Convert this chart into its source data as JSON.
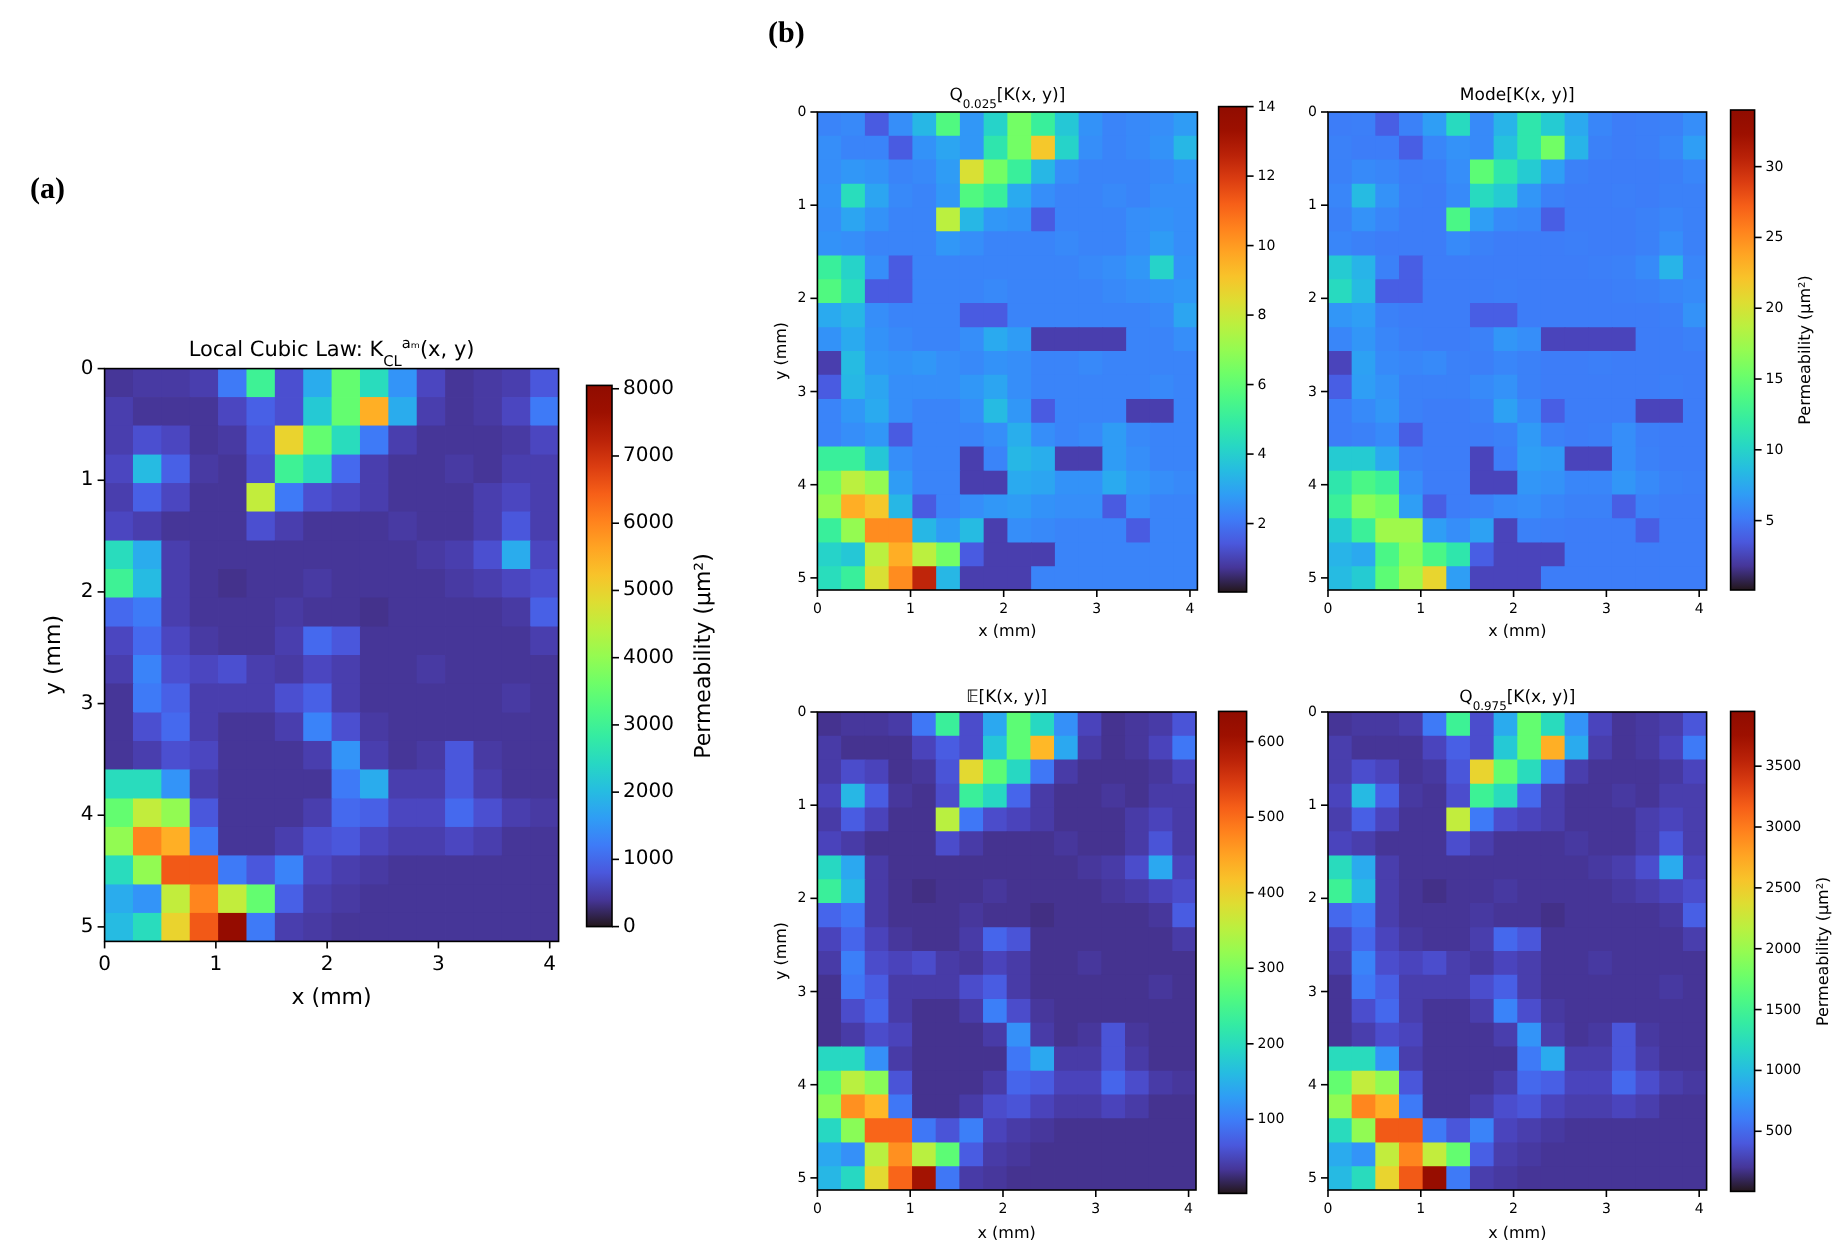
{
  "chart_data": [
    {
      "type": "heatmap",
      "title": "Local Cubic Law: K$_{CL}$$^{aₘ}$(x, y)",
      "xlabel": "x (mm)",
      "ylabel": "y (mm)",
      "clabel": "Permeability (μm²)",
      "annotations": [
        "(a)"
      ],
      "x": [
        0.13,
        0.38,
        0.64,
        0.89,
        1.15,
        1.4,
        1.66,
        1.91,
        2.17,
        2.42,
        2.68,
        2.93,
        3.19,
        3.44,
        3.7,
        3.95
      ],
      "y": [
        0.13,
        0.38,
        0.64,
        0.9,
        1.15,
        1.41,
        1.67,
        1.92,
        2.18,
        2.44,
        2.69,
        2.95,
        3.21,
        3.46,
        3.72,
        3.98,
        4.23,
        4.49,
        4.75,
        5
      ],
      "xlim": [
        0,
        4.08
      ],
      "ylim": [
        5.13,
        0
      ],
      "xticks": [
        0,
        1,
        2,
        3,
        4
      ],
      "yticks": [
        0,
        1,
        2,
        3,
        4,
        5
      ],
      "clim": [
        0,
        8050
      ],
      "cticks": [
        0,
        1000,
        2000,
        3000,
        4000,
        5000,
        6000,
        7000,
        8000
      ],
      "cells": [
        [
          400,
          450,
          450,
          500,
          1200,
          3000,
          700,
          1800,
          3500,
          2500,
          1500,
          600,
          400,
          450,
          500,
          800
        ],
        [
          500,
          400,
          400,
          400,
          600,
          900,
          700,
          2200,
          3500,
          5500,
          1800,
          500,
          400,
          450,
          600,
          1200
        ],
        [
          500,
          700,
          600,
          400,
          450,
          800,
          5000,
          3500,
          2500,
          1200,
          500,
          400,
          400,
          400,
          450,
          600
        ],
        [
          600,
          2000,
          900,
          450,
          400,
          700,
          3000,
          2500,
          1000,
          500,
          400,
          400,
          450,
          400,
          500,
          500
        ],
        [
          500,
          900,
          600,
          400,
          400,
          4500,
          1200,
          700,
          600,
          500,
          400,
          400,
          400,
          500,
          600,
          500
        ],
        [
          600,
          500,
          400,
          400,
          400,
          700,
          500,
          400,
          400,
          400,
          450,
          400,
          400,
          500,
          800,
          500
        ],
        [
          2500,
          1800,
          500,
          400,
          400,
          400,
          400,
          400,
          400,
          400,
          400,
          450,
          500,
          700,
          1800,
          600
        ],
        [
          3000,
          2000,
          500,
          400,
          350,
          400,
          400,
          450,
          400,
          400,
          400,
          400,
          450,
          500,
          600,
          700
        ],
        [
          1000,
          1200,
          500,
          400,
          400,
          400,
          450,
          400,
          400,
          350,
          400,
          400,
          400,
          400,
          450,
          900
        ],
        [
          600,
          1000,
          600,
          450,
          400,
          400,
          500,
          1000,
          800,
          400,
          400,
          400,
          400,
          400,
          400,
          500
        ],
        [
          500,
          1300,
          700,
          600,
          700,
          500,
          450,
          600,
          500,
          400,
          400,
          450,
          400,
          400,
          400,
          400
        ],
        [
          400,
          1200,
          900,
          500,
          500,
          500,
          700,
          900,
          500,
          400,
          400,
          400,
          400,
          400,
          450,
          400
        ],
        [
          400,
          700,
          1000,
          500,
          400,
          400,
          500,
          1300,
          700,
          450,
          400,
          400,
          400,
          400,
          400,
          400
        ],
        [
          400,
          500,
          700,
          600,
          400,
          400,
          400,
          500,
          1500,
          500,
          400,
          450,
          800,
          450,
          400,
          400
        ],
        [
          2500,
          2500,
          1500,
          500,
          400,
          400,
          400,
          400,
          1200,
          1800,
          500,
          500,
          800,
          500,
          400,
          400
        ],
        [
          3500,
          4500,
          4000,
          800,
          400,
          400,
          400,
          500,
          1000,
          900,
          600,
          600,
          1000,
          700,
          500,
          450
        ],
        [
          4000,
          6000,
          5500,
          1200,
          400,
          400,
          500,
          700,
          800,
          600,
          500,
          500,
          600,
          500,
          400,
          400
        ],
        [
          2500,
          4000,
          6500,
          6500,
          1200,
          800,
          1300,
          600,
          500,
          450,
          400,
          400,
          400,
          400,
          400,
          400
        ],
        [
          1800,
          1500,
          4500,
          6000,
          4500,
          3500,
          900,
          500,
          450,
          400,
          400,
          400,
          400,
          400,
          400,
          400
        ],
        [
          2000,
          2500,
          5000,
          6500,
          7800,
          1200,
          500,
          450,
          400,
          400,
          400,
          400,
          400,
          400,
          400,
          400
        ]
      ]
    },
    {
      "type": "heatmap",
      "title": "Q$_{0.025}$[K(x, y)]",
      "xlabel": "x (mm)",
      "ylabel": "y (mm)",
      "annotations": [
        "(b)"
      ],
      "x": [
        0.13,
        0.38,
        0.64,
        0.89,
        1.15,
        1.4,
        1.66,
        1.91,
        2.17,
        2.42,
        2.68,
        2.93,
        3.19,
        3.44,
        3.7,
        3.95
      ],
      "y": [
        0.13,
        0.38,
        0.64,
        0.9,
        1.15,
        1.41,
        1.67,
        1.92,
        2.18,
        2.44,
        2.69,
        2.95,
        3.21,
        3.46,
        3.72,
        3.98,
        4.23,
        4.49,
        4.75,
        5
      ],
      "xlim": [
        0,
        4.08
      ],
      "ylim": [
        5.13,
        0
      ],
      "xticks": [
        0,
        1,
        2,
        3,
        4
      ],
      "yticks": [
        0,
        1,
        2,
        3,
        4,
        5
      ],
      "clim": [
        0.03,
        14
      ],
      "cticks": [
        2,
        4,
        6,
        8,
        10,
        12,
        14
      ],
      "cells": [
        [
          2.3,
          2.4,
          1.5,
          2.5,
          3.4,
          5.7,
          2.7,
          4.1,
          6.4,
          5.1,
          3.8,
          2.6,
          2.3,
          2.4,
          2.5,
          2.8
        ],
        [
          2.5,
          2.3,
          2.3,
          1.5,
          2.6,
          3.0,
          2.7,
          4.7,
          6.4,
          9.0,
          4.1,
          2.5,
          2.3,
          2.4,
          2.6,
          3.4
        ],
        [
          2.5,
          2.7,
          2.6,
          2.3,
          2.4,
          2.8,
          8.3,
          6.4,
          5.1,
          3.4,
          2.5,
          2.3,
          2.3,
          2.3,
          2.4,
          2.6
        ],
        [
          2.6,
          4.4,
          3.0,
          2.4,
          2.3,
          2.7,
          5.7,
          5.1,
          3.1,
          2.5,
          2.3,
          2.3,
          2.4,
          2.3,
          2.5,
          2.5
        ],
        [
          2.5,
          3.0,
          2.6,
          2.3,
          2.3,
          7.7,
          3.4,
          2.7,
          2.6,
          1.5,
          2.3,
          2.3,
          2.3,
          2.5,
          2.6,
          2.5
        ],
        [
          2.6,
          2.5,
          2.3,
          2.3,
          2.3,
          2.7,
          2.5,
          2.3,
          2.3,
          2.3,
          2.4,
          2.3,
          2.3,
          2.5,
          2.8,
          2.5
        ],
        [
          5.1,
          4.1,
          2.5,
          1.5,
          2.3,
          2.3,
          2.3,
          2.3,
          2.3,
          2.3,
          2.3,
          2.4,
          2.5,
          2.7,
          4.1,
          2.6
        ],
        [
          5.7,
          4.4,
          1.5,
          1.5,
          2.3,
          2.3,
          2.3,
          2.4,
          2.3,
          2.3,
          2.3,
          2.3,
          2.4,
          2.5,
          2.6,
          2.7
        ],
        [
          3.1,
          3.4,
          2.5,
          2.3,
          2.3,
          2.3,
          1.5,
          1.5,
          2.3,
          2.3,
          2.3,
          2.3,
          2.3,
          2.3,
          2.4,
          3.0
        ],
        [
          2.6,
          3.1,
          2.6,
          2.4,
          2.3,
          2.3,
          2.5,
          3.1,
          2.8,
          0.9,
          0.9,
          0.9,
          0.9,
          2.3,
          2.3,
          2.5
        ],
        [
          0.9,
          3.5,
          2.7,
          2.6,
          2.7,
          2.5,
          2.4,
          2.6,
          2.5,
          2.3,
          2.3,
          2.4,
          2.3,
          2.3,
          2.3,
          2.3
        ],
        [
          1.5,
          3.4,
          3.0,
          2.5,
          2.5,
          2.5,
          2.7,
          3.0,
          2.5,
          2.3,
          2.3,
          2.3,
          2.3,
          2.3,
          2.4,
          2.3
        ],
        [
          2.3,
          2.7,
          3.1,
          2.5,
          2.3,
          2.3,
          2.5,
          3.5,
          2.7,
          1.5,
          2.3,
          2.3,
          2.3,
          0.9,
          0.9,
          2.3
        ],
        [
          2.3,
          2.5,
          2.7,
          1.5,
          2.3,
          2.3,
          2.3,
          2.5,
          3.2,
          2.5,
          2.3,
          2.4,
          2.8,
          2.4,
          2.3,
          2.3
        ],
        [
          5.1,
          5.1,
          3.8,
          2.5,
          2.3,
          2.3,
          0.9,
          2.3,
          3.4,
          3.2,
          0.9,
          0.9,
          2.8,
          2.5,
          2.3,
          2.3
        ],
        [
          6.4,
          7.7,
          7.0,
          2.8,
          2.3,
          2.3,
          0.9,
          0.9,
          3.1,
          3.0,
          2.6,
          2.6,
          3.1,
          2.7,
          2.5,
          2.4
        ],
        [
          7.0,
          9.6,
          9.0,
          3.4,
          1.5,
          2.3,
          2.5,
          2.7,
          2.8,
          2.6,
          2.5,
          2.5,
          1.5,
          2.5,
          2.3,
          2.3
        ],
        [
          5.1,
          7.0,
          10.3,
          10.3,
          3.4,
          2.8,
          3.5,
          0.9,
          2.5,
          2.4,
          2.3,
          2.3,
          2.3,
          1.5,
          2.3,
          2.3
        ],
        [
          4.1,
          3.8,
          7.7,
          9.6,
          7.7,
          6.4,
          1.5,
          0.9,
          0.9,
          0.9,
          2.3,
          2.3,
          2.3,
          2.3,
          2.3,
          2.3
        ],
        [
          4.4,
          5.1,
          8.3,
          10.3,
          12.5,
          3.4,
          0.9,
          0.9,
          0.9,
          2.3,
          2.3,
          2.3,
          2.3,
          2.3,
          2.3,
          2.3
        ]
      ]
    },
    {
      "type": "heatmap",
      "title": "Mode[K(x, y)]",
      "xlabel": "x (mm)",
      "clabel": "Permeability (μm²)",
      "x": [
        0.13,
        0.38,
        0.64,
        0.89,
        1.15,
        1.4,
        1.66,
        1.91,
        2.17,
        2.42,
        2.68,
        2.93,
        3.19,
        3.44,
        3.7,
        3.95
      ],
      "y": [
        0.13,
        0.38,
        0.64,
        0.9,
        1.15,
        1.41,
        1.67,
        1.92,
        2.18,
        2.44,
        2.69,
        2.95,
        3.21,
        3.46,
        3.72,
        3.98,
        4.23,
        4.49,
        4.75,
        5
      ],
      "xlim": [
        0,
        4.08
      ],
      "ylim": [
        5.13,
        0
      ],
      "xticks": [
        0,
        1,
        2,
        3,
        4
      ],
      "yticks": [
        0,
        1,
        2,
        3,
        4,
        5
      ],
      "clim": [
        0.1,
        34
      ],
      "cticks": [
        5,
        10,
        15,
        20,
        25,
        30
      ],
      "cells": [
        [
          5.3,
          5.4,
          3.8,
          5.5,
          6.9,
          10.5,
          5.9,
          8.1,
          11.5,
          9.5,
          7.5,
          5.7,
          5.3,
          5.4,
          5.5,
          6.1
        ],
        [
          5.5,
          5.3,
          5.3,
          3.8,
          5.7,
          6.3,
          5.9,
          8.9,
          11.5,
          15.5,
          8.1,
          5.5,
          5.3,
          5.4,
          5.7,
          6.9
        ],
        [
          5.5,
          5.9,
          5.7,
          5.3,
          5.4,
          6.1,
          14.5,
          11.5,
          9.5,
          6.9,
          5.5,
          5.3,
          5.3,
          5.3,
          5.4,
          5.7
        ],
        [
          5.7,
          8.5,
          6.3,
          5.4,
          5.3,
          5.9,
          10.5,
          9.5,
          6.5,
          5.5,
          5.3,
          5.3,
          5.4,
          5.3,
          5.5,
          5.5
        ],
        [
          5.5,
          6.3,
          5.7,
          5.3,
          5.3,
          13.5,
          6.9,
          5.9,
          5.7,
          3.8,
          5.3,
          5.3,
          5.3,
          5.5,
          5.7,
          5.5
        ],
        [
          5.7,
          5.5,
          5.3,
          5.3,
          5.3,
          5.9,
          5.5,
          5.3,
          5.3,
          5.3,
          5.4,
          5.3,
          5.3,
          5.5,
          6.1,
          5.5
        ],
        [
          9.5,
          8.1,
          5.5,
          3.8,
          5.3,
          5.3,
          5.3,
          5.3,
          5.3,
          5.3,
          5.3,
          5.4,
          5.5,
          5.9,
          8.1,
          5.7
        ],
        [
          10.5,
          8.5,
          3.8,
          3.8,
          5.3,
          5.3,
          5.3,
          5.4,
          5.3,
          5.3,
          5.3,
          5.3,
          5.4,
          5.5,
          5.7,
          5.9
        ],
        [
          6.5,
          6.9,
          5.5,
          5.3,
          5.3,
          5.3,
          3.8,
          3.8,
          5.3,
          5.3,
          5.3,
          5.3,
          5.3,
          5.3,
          5.4,
          6.3
        ],
        [
          5.7,
          6.5,
          5.7,
          5.4,
          5.3,
          5.3,
          5.5,
          6.5,
          6.1,
          2.5,
          2.5,
          2.5,
          2.5,
          5.3,
          5.3,
          5.5
        ],
        [
          2.5,
          7.1,
          5.9,
          5.7,
          5.9,
          5.5,
          5.4,
          5.7,
          5.5,
          5.3,
          5.3,
          5.4,
          5.3,
          5.3,
          5.3,
          5.3
        ],
        [
          3.8,
          6.9,
          6.3,
          5.5,
          5.5,
          5.5,
          5.9,
          6.3,
          5.5,
          5.3,
          5.3,
          5.3,
          5.3,
          5.3,
          5.4,
          5.3
        ],
        [
          5.3,
          5.9,
          6.5,
          5.5,
          5.3,
          5.3,
          5.5,
          7.1,
          5.9,
          3.8,
          5.3,
          5.3,
          5.3,
          2.5,
          2.5,
          5.3
        ],
        [
          5.3,
          5.5,
          5.9,
          3.8,
          5.3,
          5.3,
          5.3,
          5.5,
          6.7,
          5.5,
          5.3,
          5.4,
          6.1,
          5.4,
          5.3,
          5.3
        ],
        [
          9.5,
          9.5,
          7.5,
          5.5,
          5.3,
          5.3,
          2.5,
          5.3,
          6.9,
          6.7,
          2.5,
          2.5,
          6.1,
          5.5,
          5.3,
          5.3
        ],
        [
          11.5,
          13.5,
          12.5,
          6.1,
          5.3,
          5.3,
          2.5,
          2.5,
          6.5,
          6.3,
          5.7,
          5.7,
          6.5,
          5.9,
          5.5,
          5.4
        ],
        [
          12.5,
          16.5,
          15.5,
          6.9,
          3.8,
          5.3,
          5.5,
          5.9,
          6.1,
          5.7,
          5.5,
          5.5,
          3.8,
          5.5,
          5.3,
          5.3
        ],
        [
          9.5,
          12.5,
          17.5,
          17.5,
          6.9,
          6.1,
          7.1,
          2.5,
          5.5,
          5.4,
          5.3,
          5.3,
          5.3,
          3.8,
          5.3,
          5.3
        ],
        [
          8.1,
          7.5,
          13.5,
          16.5,
          13.5,
          11.5,
          3.8,
          2.5,
          2.5,
          2.5,
          5.3,
          5.3,
          5.3,
          5.3,
          5.3,
          5.3
        ],
        [
          8.5,
          9.5,
          14.5,
          17.5,
          21,
          6.9,
          2.5,
          2.5,
          2.5,
          5.3,
          5.3,
          5.3,
          5.3,
          5.3,
          5.3,
          5.3
        ]
      ]
    },
    {
      "type": "heatmap",
      "title": "𝔼[K(x, y)]",
      "xlabel": "x (mm)",
      "ylabel": "y (mm)",
      "x": [
        0.13,
        0.38,
        0.64,
        0.89,
        1.15,
        1.4,
        1.66,
        1.91,
        2.17,
        2.42,
        2.68,
        2.93,
        3.19,
        3.44,
        3.7,
        3.95
      ],
      "y": [
        0.13,
        0.38,
        0.64,
        0.9,
        1.15,
        1.41,
        1.67,
        1.92,
        2.18,
        2.44,
        2.69,
        2.95,
        3.21,
        3.46,
        3.72,
        3.98,
        4.23,
        4.49,
        4.75,
        5
      ],
      "xlim": [
        0,
        4.08
      ],
      "ylim": [
        5.13,
        0
      ],
      "xticks": [
        0,
        1,
        2,
        3,
        4
      ],
      "yticks": [
        0,
        1,
        2,
        3,
        4,
        5
      ],
      "clim": [
        2,
        640
      ],
      "cticks": [
        100,
        200,
        300,
        400,
        500,
        600
      ],
      "cells": [
        [
          31,
          35,
          35,
          39,
          94,
          234,
          55,
          140,
          273,
          195,
          117,
          47,
          31,
          35,
          39,
          62
        ],
        [
          39,
          31,
          31,
          31,
          47,
          70,
          55,
          172,
          273,
          429,
          140,
          39,
          31,
          35,
          47,
          94
        ],
        [
          39,
          55,
          47,
          31,
          35,
          62,
          390,
          273,
          195,
          94,
          39,
          31,
          31,
          31,
          35,
          47
        ],
        [
          47,
          156,
          70,
          35,
          31,
          55,
          234,
          195,
          78,
          39,
          31,
          31,
          35,
          31,
          39,
          39
        ],
        [
          39,
          70,
          47,
          31,
          31,
          351,
          94,
          55,
          47,
          39,
          31,
          31,
          31,
          39,
          47,
          39
        ],
        [
          47,
          39,
          31,
          31,
          31,
          55,
          39,
          31,
          31,
          31,
          35,
          31,
          31,
          39,
          62,
          39
        ],
        [
          195,
          140,
          39,
          31,
          31,
          31,
          31,
          31,
          31,
          31,
          31,
          35,
          39,
          55,
          140,
          47
        ],
        [
          234,
          156,
          39,
          31,
          27,
          31,
          31,
          35,
          31,
          31,
          31,
          31,
          35,
          39,
          47,
          55
        ],
        [
          78,
          94,
          39,
          31,
          31,
          31,
          35,
          31,
          31,
          27,
          31,
          31,
          31,
          31,
          35,
          70
        ],
        [
          47,
          78,
          47,
          35,
          31,
          31,
          39,
          78,
          62,
          31,
          31,
          31,
          31,
          31,
          31,
          39
        ],
        [
          39,
          101,
          55,
          47,
          55,
          39,
          35,
          47,
          39,
          31,
          31,
          35,
          31,
          31,
          31,
          31
        ],
        [
          31,
          94,
          70,
          39,
          39,
          39,
          55,
          70,
          39,
          31,
          31,
          31,
          31,
          31,
          35,
          31
        ],
        [
          31,
          55,
          78,
          39,
          31,
          31,
          39,
          101,
          55,
          35,
          31,
          31,
          31,
          31,
          31,
          31
        ],
        [
          31,
          39,
          55,
          47,
          31,
          31,
          31,
          39,
          117,
          39,
          31,
          35,
          62,
          35,
          31,
          31
        ],
        [
          195,
          195,
          117,
          39,
          31,
          31,
          31,
          31,
          94,
          140,
          39,
          39,
          62,
          39,
          31,
          31
        ],
        [
          273,
          351,
          312,
          62,
          31,
          31,
          31,
          39,
          78,
          70,
          47,
          47,
          78,
          55,
          39,
          35
        ],
        [
          312,
          468,
          429,
          94,
          31,
          31,
          39,
          55,
          62,
          47,
          39,
          39,
          47,
          39,
          31,
          31
        ],
        [
          195,
          312,
          507,
          507,
          94,
          62,
          101,
          47,
          39,
          35,
          31,
          31,
          31,
          31,
          31,
          31
        ],
        [
          140,
          117,
          351,
          468,
          351,
          273,
          70,
          39,
          35,
          31,
          31,
          31,
          31,
          31,
          31,
          31
        ],
        [
          156,
          195,
          390,
          507,
          600,
          94,
          39,
          35,
          31,
          31,
          31,
          31,
          31,
          31,
          31,
          31
        ]
      ]
    },
    {
      "type": "heatmap",
      "title": "Q$_{0.975}$[K(x, y)]",
      "xlabel": "x (mm)",
      "clabel": "Permeability (μm²)",
      "x": [
        0.13,
        0.38,
        0.64,
        0.89,
        1.15,
        1.4,
        1.66,
        1.91,
        2.17,
        2.42,
        2.68,
        2.93,
        3.19,
        3.44,
        3.7,
        3.95
      ],
      "y": [
        0.13,
        0.38,
        0.64,
        0.9,
        1.15,
        1.41,
        1.67,
        1.92,
        2.18,
        2.44,
        2.69,
        2.95,
        3.21,
        3.46,
        3.72,
        3.98,
        4.23,
        4.49,
        4.75,
        5
      ],
      "xlim": [
        0,
        4.08
      ],
      "ylim": [
        5.13,
        0
      ],
      "xticks": [
        0,
        1,
        2,
        3,
        4
      ],
      "yticks": [
        0,
        1,
        2,
        3,
        4,
        5
      ],
      "clim": [
        6,
        3950
      ],
      "cticks": [
        500,
        1000,
        1500,
        2000,
        2500,
        3000,
        3500
      ],
      "cells": [
        [
          200,
          220,
          220,
          250,
          590,
          1470,
          340,
          880,
          1720,
          1230,
          740,
          290,
          200,
          220,
          250,
          390
        ],
        [
          250,
          200,
          200,
          200,
          290,
          440,
          340,
          1080,
          1720,
          2700,
          880,
          250,
          200,
          220,
          290,
          590
        ],
        [
          250,
          340,
          290,
          200,
          220,
          390,
          2450,
          1720,
          1230,
          590,
          250,
          200,
          200,
          200,
          220,
          290
        ],
        [
          290,
          980,
          440,
          220,
          200,
          340,
          1470,
          1230,
          490,
          250,
          200,
          200,
          220,
          200,
          250,
          250
        ],
        [
          250,
          440,
          290,
          200,
          200,
          2210,
          590,
          340,
          290,
          250,
          200,
          200,
          200,
          250,
          290,
          250
        ],
        [
          290,
          250,
          200,
          200,
          200,
          340,
          250,
          200,
          200,
          200,
          220,
          200,
          200,
          250,
          390,
          250
        ],
        [
          1230,
          880,
          250,
          200,
          200,
          200,
          200,
          200,
          200,
          200,
          200,
          220,
          250,
          340,
          880,
          290
        ],
        [
          1470,
          980,
          250,
          200,
          170,
          200,
          200,
          220,
          200,
          200,
          200,
          200,
          220,
          250,
          290,
          340
        ],
        [
          490,
          590,
          250,
          200,
          200,
          200,
          220,
          200,
          200,
          170,
          200,
          200,
          200,
          200,
          220,
          440
        ],
        [
          290,
          490,
          290,
          220,
          200,
          200,
          250,
          490,
          390,
          200,
          200,
          200,
          200,
          200,
          200,
          250
        ],
        [
          250,
          640,
          340,
          290,
          340,
          250,
          220,
          290,
          250,
          200,
          200,
          220,
          200,
          200,
          200,
          200
        ],
        [
          200,
          590,
          440,
          250,
          250,
          250,
          340,
          440,
          250,
          200,
          200,
          200,
          200,
          200,
          220,
          200
        ],
        [
          200,
          340,
          490,
          250,
          200,
          200,
          250,
          640,
          340,
          220,
          200,
          200,
          200,
          200,
          200,
          200
        ],
        [
          200,
          250,
          340,
          290,
          200,
          200,
          200,
          250,
          740,
          250,
          200,
          220,
          390,
          220,
          200,
          200
        ],
        [
          1230,
          1230,
          740,
          250,
          200,
          200,
          200,
          200,
          590,
          880,
          250,
          250,
          390,
          250,
          200,
          200
        ],
        [
          1720,
          2210,
          1960,
          390,
          200,
          200,
          200,
          250,
          490,
          440,
          290,
          290,
          490,
          340,
          250,
          220
        ],
        [
          1960,
          2940,
          2700,
          590,
          200,
          200,
          250,
          340,
          390,
          290,
          250,
          250,
          290,
          250,
          200,
          200
        ],
        [
          1230,
          1960,
          3190,
          3190,
          590,
          390,
          640,
          290,
          250,
          220,
          200,
          200,
          200,
          200,
          200,
          200
        ],
        [
          880,
          740,
          2210,
          2940,
          2210,
          1720,
          440,
          250,
          220,
          200,
          200,
          200,
          200,
          200,
          200,
          200
        ],
        [
          980,
          1230,
          2450,
          3190,
          3800,
          590,
          250,
          220,
          200,
          200,
          200,
          200,
          200,
          200,
          200,
          200
        ]
      ]
    }
  ]
}
